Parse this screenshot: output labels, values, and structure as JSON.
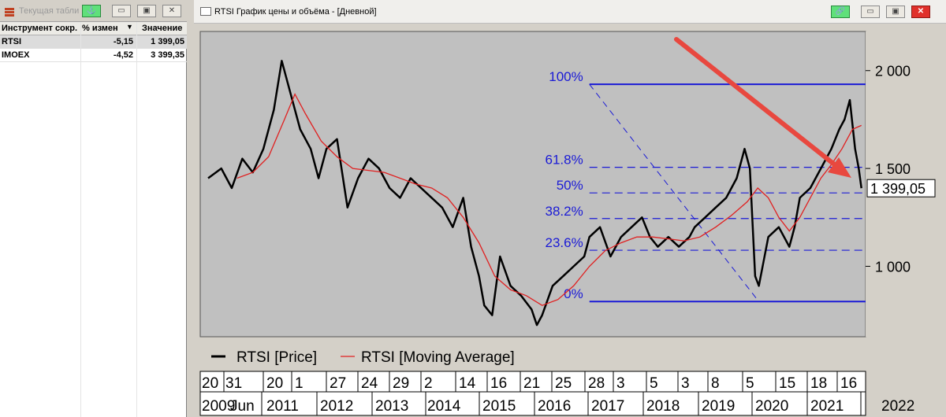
{
  "left_window": {
    "title": "Текущая таблица",
    "columns": [
      "Инструмент сокр.",
      "% измен",
      "Значение"
    ],
    "rows": [
      {
        "name": "RTSI",
        "change": "-5,15",
        "value": "1 399,05"
      },
      {
        "name": "IMOEX",
        "change": "-4,52",
        "value": "3 399,35"
      }
    ],
    "buttons": {
      "anchor": "⚓",
      "minimize": "▭",
      "restore": "▣",
      "close": "✕"
    }
  },
  "chart_window": {
    "title": "RTSI График цены и объёма - [Дневной]",
    "buttons": {
      "link": "🔗",
      "minimize": "▭",
      "restore": "▣",
      "close": "✕"
    }
  },
  "chart_data": {
    "type": "line",
    "title": "",
    "xlabel": "",
    "ylabel": "",
    "y_ticks": [
      "2 000",
      "1 500",
      "1 000"
    ],
    "y_tick_values": [
      2000,
      1500,
      1000
    ],
    "last_value_label": "1 399,05",
    "last_value": 1399.05,
    "ylim": [
      640,
      2200
    ],
    "legend": [
      {
        "name": "RTSI [Price]",
        "color": "#000000"
      },
      {
        "name": "RTSI [Moving Average]",
        "color": "#e02020"
      }
    ],
    "x_day_labels": [
      "20",
      "31",
      "20",
      "1",
      "27",
      "24",
      "29",
      "2",
      "14",
      "16",
      "21",
      "25",
      "28",
      "3",
      "5",
      "3",
      "8",
      "5",
      "15",
      "18",
      "16"
    ],
    "x_year_labels": [
      "2009",
      "Jun",
      "2011",
      "2012",
      "2013",
      "2014",
      "2015",
      "2016",
      "2017",
      "2018",
      "2019",
      "2020",
      "2021",
      "2022"
    ],
    "price_series": {
      "name": "RTSI [Price]",
      "x": [
        2009.75,
        2010.0,
        2010.2,
        2010.4,
        2010.6,
        2010.8,
        2011.0,
        2011.15,
        2011.3,
        2011.5,
        2011.7,
        2011.85,
        2012.0,
        2012.2,
        2012.4,
        2012.6,
        2012.8,
        2013.0,
        2013.2,
        2013.4,
        2013.6,
        2013.8,
        2014.0,
        2014.2,
        2014.4,
        2014.6,
        2014.75,
        2014.9,
        2015.0,
        2015.15,
        2015.3,
        2015.5,
        2015.7,
        2015.9,
        2016.0,
        2016.1,
        2016.3,
        2016.5,
        2016.7,
        2016.9,
        2017.0,
        2017.2,
        2017.4,
        2017.6,
        2017.8,
        2018.0,
        2018.15,
        2018.3,
        2018.5,
        2018.7,
        2018.9,
        2019.0,
        2019.2,
        2019.4,
        2019.6,
        2019.8,
        2019.95,
        2020.05,
        2020.15,
        2020.22,
        2020.4,
        2020.6,
        2020.8,
        2020.9,
        2021.0,
        2021.2,
        2021.4,
        2021.6,
        2021.75,
        2021.85,
        2021.95,
        2022.05,
        2022.12,
        2022.17
      ],
      "y": [
        1450,
        1500,
        1400,
        1550,
        1480,
        1600,
        1800,
        2050,
        1900,
        1700,
        1600,
        1450,
        1600,
        1650,
        1300,
        1450,
        1550,
        1500,
        1400,
        1350,
        1450,
        1400,
        1350,
        1300,
        1200,
        1350,
        1100,
        950,
        800,
        750,
        1050,
        900,
        850,
        780,
        700,
        750,
        900,
        950,
        1000,
        1050,
        1150,
        1200,
        1050,
        1150,
        1200,
        1250,
        1150,
        1100,
        1150,
        1100,
        1150,
        1200,
        1250,
        1300,
        1350,
        1450,
        1600,
        1500,
        950,
        900,
        1150,
        1200,
        1100,
        1200,
        1350,
        1400,
        1500,
        1600,
        1700,
        1750,
        1850,
        1600,
        1500,
        1399.05
      ]
    },
    "ma_series": {
      "name": "RTSI [Moving Average]",
      "x": [
        2010.3,
        2010.6,
        2010.9,
        2011.2,
        2011.4,
        2011.6,
        2011.9,
        2012.2,
        2012.5,
        2012.8,
        2013.1,
        2013.4,
        2013.7,
        2014.0,
        2014.3,
        2014.6,
        2014.9,
        2015.2,
        2015.5,
        2015.8,
        2016.1,
        2016.4,
        2016.7,
        2017.0,
        2017.3,
        2017.6,
        2017.9,
        2018.2,
        2018.5,
        2018.8,
        2019.1,
        2019.4,
        2019.7,
        2020.0,
        2020.2,
        2020.4,
        2020.6,
        2020.8,
        2021.0,
        2021.2,
        2021.4,
        2021.6,
        2021.8,
        2022.0,
        2022.17
      ],
      "y": [
        1450,
        1480,
        1560,
        1750,
        1880,
        1780,
        1640,
        1560,
        1500,
        1490,
        1480,
        1450,
        1420,
        1400,
        1350,
        1250,
        1120,
        950,
        880,
        850,
        800,
        830,
        900,
        1000,
        1080,
        1120,
        1150,
        1150,
        1140,
        1130,
        1150,
        1200,
        1260,
        1330,
        1400,
        1350,
        1250,
        1180,
        1250,
        1350,
        1450,
        1520,
        1600,
        1700,
        1720
      ]
    },
    "fibonacci": {
      "high": 1930,
      "low": 820,
      "levels": [
        {
          "label": "100%",
          "ratio": 1.0
        },
        {
          "label": "61.8%",
          "ratio": 0.618
        },
        {
          "label": "50%",
          "ratio": 0.5
        },
        {
          "label": "38.2%",
          "ratio": 0.382
        },
        {
          "label": "23.6%",
          "ratio": 0.236
        },
        {
          "label": "0%",
          "ratio": 0.0
        }
      ]
    },
    "colors": {
      "price": "#000000",
      "ma": "#e02020",
      "fib": "#1a1ad6",
      "arrow": "#e8483f"
    }
  }
}
